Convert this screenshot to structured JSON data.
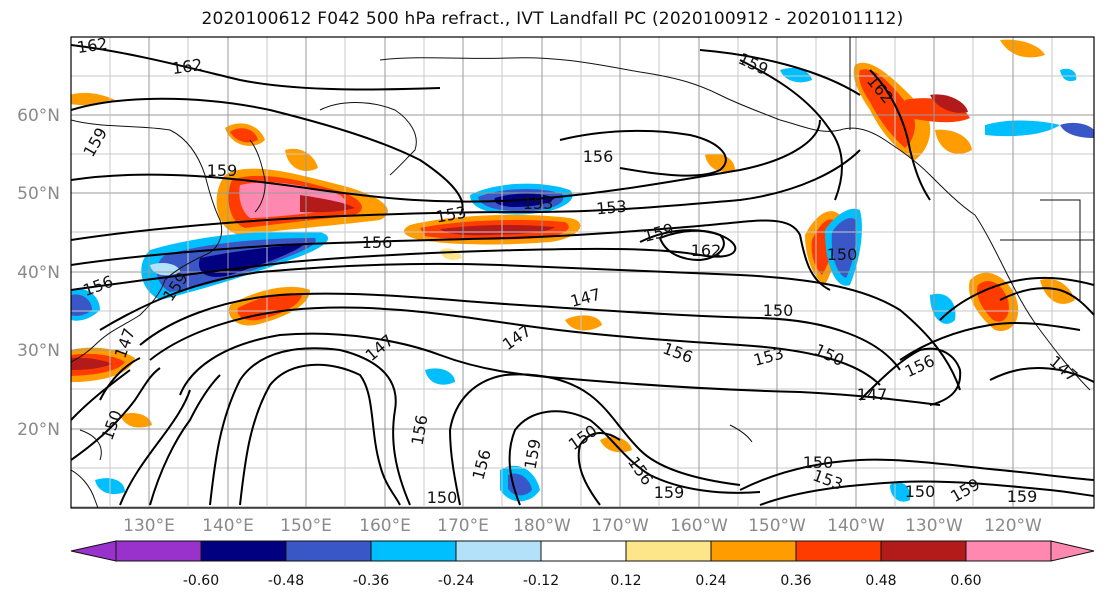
{
  "title": "2020100612 F042 500 hPa refract., IVT Landfall PC (2020100912 - 2020101112)",
  "map": {
    "lat_labels": [
      "60°N",
      "50°N",
      "40°N",
      "30°N",
      "20°N"
    ],
    "lon_labels": [
      "130°E",
      "140°E",
      "150°E",
      "160°E",
      "170°E",
      "180°W",
      "170°W",
      "160°W",
      "150°W",
      "140°W",
      "130°W",
      "120°W"
    ],
    "contour_labels": [
      "162",
      "162",
      "159",
      "159",
      "159",
      "156",
      "153",
      "153",
      "153",
      "159",
      "162",
      "150",
      "156",
      "162",
      "147",
      "150",
      "147",
      "147",
      "156",
      "153",
      "150",
      "156",
      "147",
      "147",
      "156",
      "159",
      "150",
      "156",
      "147",
      "150",
      "156",
      "159",
      "150",
      "150",
      "153",
      "159",
      "150",
      "156",
      "159",
      "159"
    ]
  },
  "colorbar": {
    "levels": [
      "-0.60",
      "-0.48",
      "-0.36",
      "-0.24",
      "-0.12",
      "0.12",
      "0.24",
      "0.36",
      "0.48",
      "0.60"
    ],
    "colors": [
      "#9932cc",
      "#000080",
      "#3a57c8",
      "#00bfff",
      "#b4e1fa",
      "#ffffff",
      "#fde68a",
      "#ff9d00",
      "#ff3c00",
      "#b31b1b",
      "#ff88b0"
    ]
  }
}
